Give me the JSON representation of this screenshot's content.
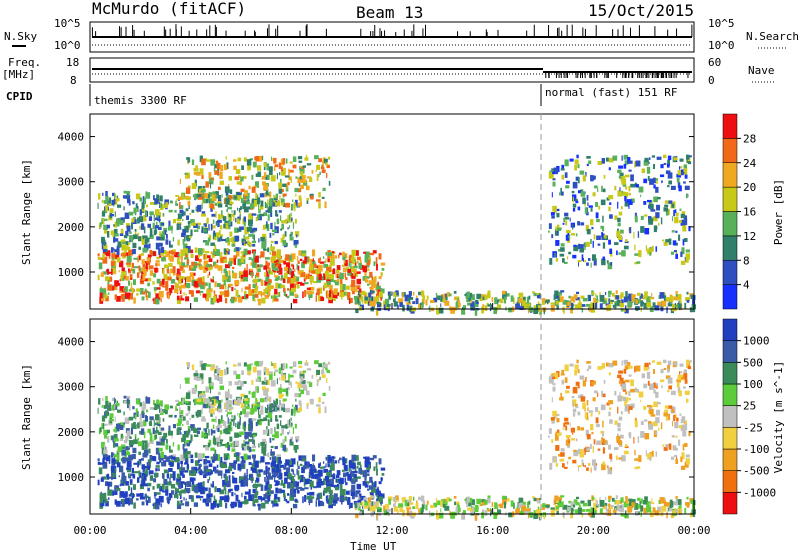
{
  "header": {
    "station": "McMurdo (fitACF)",
    "beam": "Beam 13",
    "date": "15/Oct/2015"
  },
  "strip_labels": {
    "nsky": "N.Sky",
    "nsky_top": "10^5",
    "nsky_bottom": "10^0",
    "nsearch": "N.Search",
    "nsearch_top": "10^5",
    "nsearch_bottom": "10^0",
    "freq": "Freq.",
    "freq_unit": "[MHz]",
    "freq_top": "18",
    "freq_bottom": "8",
    "nave": "Nave",
    "nave_top": "60",
    "nave_bottom": "0",
    "cpid": "CPID",
    "mode1": "themis 3300 RF",
    "mode2": "normal (fast) 151 RF"
  },
  "axes": {
    "ylabel": "Slant Range [km]",
    "xlabel": "Time UT",
    "yticks": [
      "1000",
      "2000",
      "3000",
      "4000"
    ],
    "xticks": [
      "00:00",
      "04:00",
      "08:00",
      "12:00",
      "16:00",
      "20:00",
      "00:00"
    ]
  },
  "power_bar": {
    "label": "Power [dB]",
    "ticks": [
      "4",
      "8",
      "12",
      "16",
      "20",
      "24",
      "28"
    ],
    "colors": [
      "#1530ff",
      "#2e4fc0",
      "#2f7f6a",
      "#58b05a",
      "#c8c818",
      "#f0a820",
      "#f06818",
      "#ee1010"
    ]
  },
  "velocity_bar": {
    "label": "Velocity [m s^-1]",
    "ticks": [
      "1000",
      "500",
      "100",
      "25",
      "-25",
      "-100",
      "-500",
      "-1000"
    ],
    "colors": [
      "#2040c0",
      "#3a5ca8",
      "#3a8a5a",
      "#5ccc3a",
      "#c0c0c0",
      "#f0d040",
      "#f0a020",
      "#f07010",
      "#ee1010"
    ]
  },
  "chart_data": {
    "type": "heatmap",
    "title": "McMurdo (fitACF) Beam 13 15/Oct/2015",
    "xlabel": "Time UT",
    "ylabel": "Slant Range [km]",
    "xlim_hours": [
      0,
      24
    ],
    "ylim_km": [
      180,
      4500
    ],
    "mode_change_hour": 18,
    "panels": [
      "Power [dB]",
      "Velocity [m s^-1]"
    ],
    "power_levels_db": [
      4,
      8,
      12,
      16,
      20,
      24,
      28
    ],
    "velocity_levels": [
      1000,
      500,
      100,
      25,
      -25,
      -100,
      -500,
      -1000
    ],
    "echo_regions": [
      {
        "t0": 0.3,
        "t1": 11.6,
        "r0": 400,
        "r1": 1500,
        "power": "12-28 dB",
        "velocity": "500-1000"
      },
      {
        "t0": 0.3,
        "t1": 8.2,
        "r0": 1500,
        "r1": 2800,
        "power": "8-16 dB",
        "velocity": "100-500"
      },
      {
        "t0": 3.5,
        "t1": 9.5,
        "r0": 2500,
        "r1": 3600,
        "power": "12-24 dB",
        "velocity": "25-500"
      },
      {
        "t0": 10.5,
        "t1": 24,
        "r0": 180,
        "r1": 600,
        "power": "8-20 dB",
        "velocity": "-100-100"
      },
      {
        "t0": 18.2,
        "t1": 23.8,
        "r0": 1200,
        "r1": 3600,
        "power": "4-16 dB",
        "velocity": "-500-25"
      }
    ]
  }
}
